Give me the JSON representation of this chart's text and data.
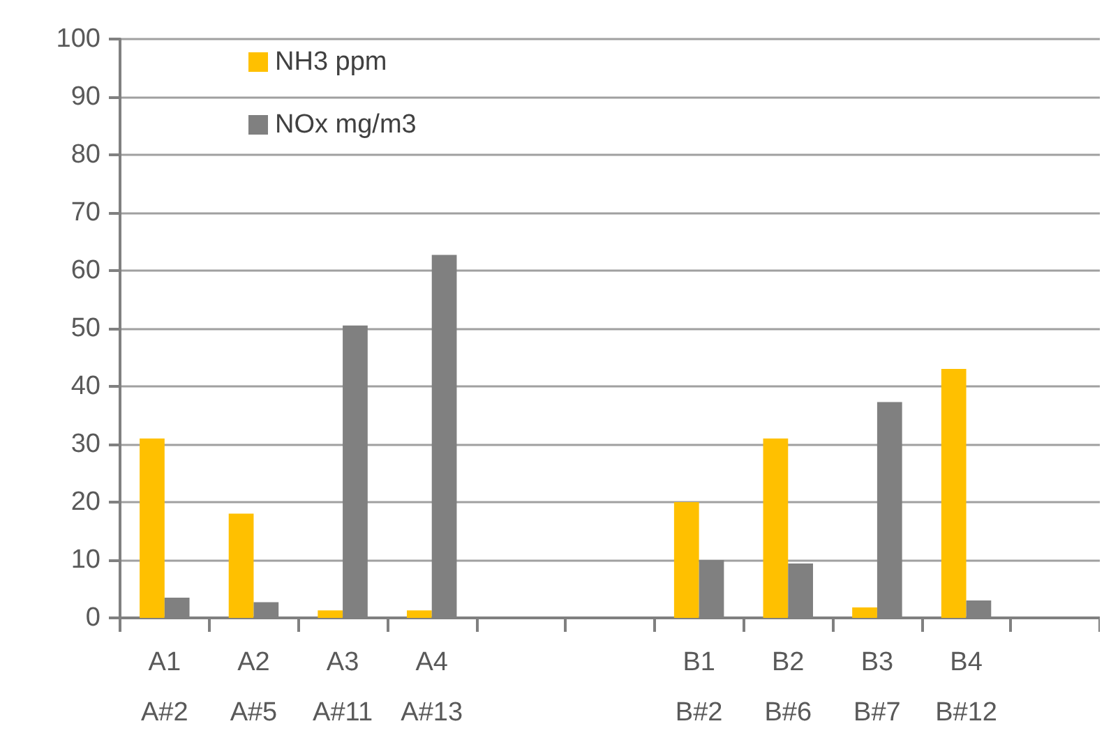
{
  "chart_data": {
    "type": "bar",
    "categories": [
      "A1\nA#2",
      "A2\nA#5",
      "A3\nA#11",
      "A4\nA#13",
      null,
      null,
      "B1\nB#2",
      "B2\nB#6",
      "B3\nB#7",
      "B4\nB#12",
      null
    ],
    "series": [
      {
        "name": "NH3 ppm",
        "color": "#ffc000",
        "values": [
          31,
          18,
          1.3,
          1.3,
          null,
          null,
          20,
          31,
          1.8,
          43,
          null
        ]
      },
      {
        "name": "NOx mg/m3",
        "color": "#808080",
        "values": [
          3.5,
          2.7,
          50.5,
          62.7,
          null,
          null,
          10,
          9.4,
          37.3,
          3,
          null
        ]
      }
    ],
    "ylim": [
      0,
      100
    ],
    "yticks": [
      0,
      10,
      20,
      30,
      40,
      50,
      60,
      70,
      80,
      90,
      100
    ],
    "grid": "y",
    "legend": "top left"
  }
}
